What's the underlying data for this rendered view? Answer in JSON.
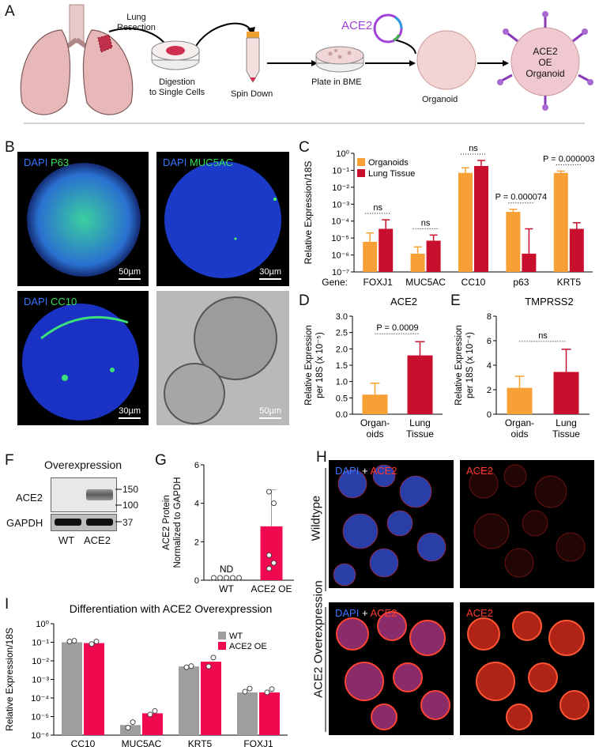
{
  "panels": {
    "A": "A",
    "B": "B",
    "C": "C",
    "D": "D",
    "E": "E",
    "F": "F",
    "G": "G",
    "H": "H",
    "I": "I"
  },
  "schematic": {
    "lung_resection": [
      "Lung",
      "Resection"
    ],
    "digestion": [
      "Digestion",
      "to Single Cells"
    ],
    "spin_down": "Spin Down",
    "plate": "Plate in BME",
    "ace2": "ACE2",
    "organoid": "Organoid",
    "ace2_oe_organoid": [
      "ACE2",
      "OE",
      "Organoid"
    ]
  },
  "micrographs": {
    "p63": {
      "dapi": "DAPI",
      "marker": "P63",
      "scale": "50µm"
    },
    "muc5ac": {
      "dapi": "DAPI",
      "marker": "MUC5AC",
      "scale": "30µm"
    },
    "cc10": {
      "dapi": "DAPI",
      "marker": "CC10",
      "scale": "30µm"
    },
    "brightfield": {
      "scale": "50µm"
    }
  },
  "blot": {
    "title": "Overexpression",
    "rows": [
      "ACE2",
      "GAPDH"
    ],
    "markers": [
      "150",
      "100",
      "37"
    ],
    "lanes": [
      "WT",
      "ACE2"
    ]
  },
  "panel_h": {
    "col_labels": [
      [
        "DAPI",
        "+",
        "ACE2"
      ],
      "ACE2"
    ],
    "row_labels": [
      "Wildtype",
      "ACE2 Overexpression"
    ]
  },
  "colors": {
    "orange": "#f7a035",
    "crimson": "#c8102e",
    "pink": "#f0094f",
    "gray": "#9e9e9e",
    "dapi_blue": "#3a76ff",
    "green": "#37e15a",
    "red_label": "#ff3b2f"
  },
  "chart_data": [
    {
      "panel": "C",
      "type": "bar",
      "scale": "log",
      "ylabel": "Relative Expression/18S",
      "xlabel": "Gene:",
      "categories": [
        "FOXJ1",
        "MUC5AC",
        "CC10",
        "p63",
        "KRT5"
      ],
      "yticks": [
        "10⁻⁷",
        "10⁻⁶",
        "10⁻⁵",
        "10⁻⁴",
        "10⁻³",
        "10⁻²",
        "10⁻¹",
        "10⁰"
      ],
      "ylim": [
        1e-07,
        1
      ],
      "legend": "top-left",
      "series": [
        {
          "name": "Organoids",
          "values": [
            6e-06,
            1.2e-06,
            0.07,
            0.00035,
            0.07
          ],
          "err": [
            2e-05,
            3e-06,
            0.14,
            0.0005,
            0.09
          ]
        },
        {
          "name": "Lung Tissue",
          "values": [
            3.5e-05,
            7e-06,
            0.18,
            1.2e-06,
            3.5e-05
          ],
          "err": [
            0.00012,
            1.5e-05,
            0.38,
            3.5e-05,
            8e-05
          ]
        }
      ],
      "annotations": [
        "ns",
        "ns",
        "ns",
        "P = 0.000074",
        "P = 0.000003"
      ]
    },
    {
      "panel": "D",
      "type": "bar",
      "title": "ACE2",
      "ylabel": [
        "Relative Expression",
        "per 18S (x 10⁻⁵)"
      ],
      "categories": [
        [
          "Organ-",
          "oids"
        ],
        [
          "Lung",
          "Tissue"
        ]
      ],
      "values": [
        0.6,
        1.8
      ],
      "err": [
        0.95,
        2.22
      ],
      "yticks": [
        "0.0",
        "0.5",
        "1.0",
        "1.5",
        "2.0",
        "2.5",
        "3.0"
      ],
      "ylim": [
        0,
        3.0
      ],
      "annotation": "P = 0.0009"
    },
    {
      "panel": "E",
      "type": "bar",
      "title": "TMPRSS2",
      "ylabel": [
        "Relative Expression",
        "per 18S (x 10⁻⁴)"
      ],
      "categories": [
        [
          "Organ-",
          "oids"
        ],
        [
          "Lung",
          "Tissue"
        ]
      ],
      "values": [
        2.15,
        3.45
      ],
      "err": [
        3.1,
        5.3
      ],
      "yticks": [
        "0",
        "2",
        "4",
        "6",
        "8"
      ],
      "ylim": [
        0,
        8
      ],
      "annotation": "ns"
    },
    {
      "panel": "G",
      "type": "bar",
      "ylabel": [
        "ACE2 Protein",
        "Normalized to GAPDH"
      ],
      "categories": [
        "WT",
        "ACE2 OE"
      ],
      "values": [
        0,
        2.8
      ],
      "err": [
        0,
        4.7
      ],
      "points": [
        [
          0,
          0,
          0,
          0,
          0
        ],
        [
          0.6,
          0.9,
          1.3,
          4.0,
          4.6
        ]
      ],
      "yticks": [
        "0",
        "2",
        "4",
        "6"
      ],
      "ylim": [
        0,
        6
      ],
      "nd_label": "ND"
    },
    {
      "panel": "I",
      "type": "bar",
      "scale": "log",
      "title": "Differentiation with ACE2 Overexpression",
      "ylabel": "Relative Expression/18S",
      "categories": [
        "CC10",
        "MUC5AC",
        "KRT5",
        "FOXJ1"
      ],
      "yticks": [
        "10⁻⁶",
        "10⁻⁵",
        "10⁻⁴",
        "10⁻³",
        "10⁻²",
        "10⁻¹",
        "10⁰"
      ],
      "ylim": [
        1e-06,
        1
      ],
      "legend": "top-right",
      "series": [
        {
          "name": "WT",
          "values": [
            0.1,
            3.5e-06,
            0.005,
            0.0002
          ],
          "points": [
            [
              0.11,
              0.12
            ],
            [
              2.5e-06,
              5e-06
            ],
            [
              0.0045,
              0.0052
            ],
            [
              0.00022,
              0.00032
            ]
          ]
        },
        {
          "name": "ACE2 OE",
          "values": [
            0.09,
            1.5e-05,
            0.009,
            0.0002
          ],
          "points": [
            [
              0.08,
              0.11
            ],
            [
              1.3e-05,
              2e-05
            ],
            [
              0.005,
              0.015
            ],
            [
              0.0002,
              0.0003
            ]
          ]
        }
      ]
    }
  ]
}
